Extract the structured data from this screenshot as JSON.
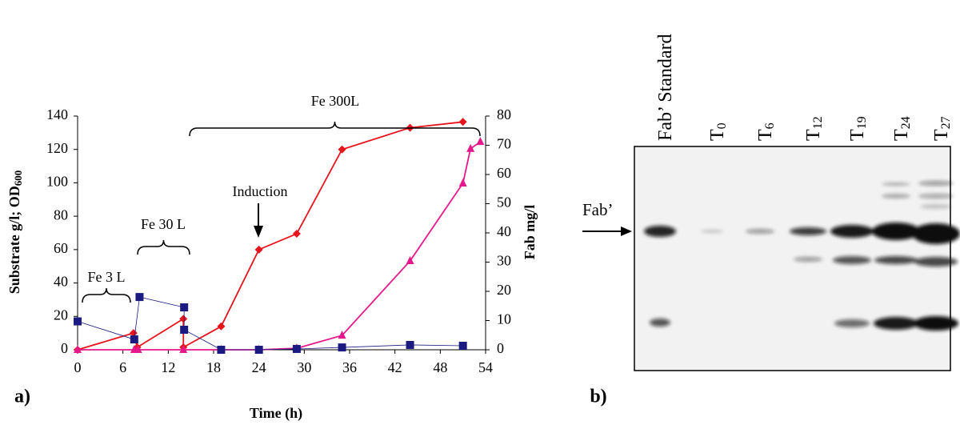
{
  "chart_data": {
    "type": "line",
    "panel_label": "a)",
    "xlabel": "Time (h)",
    "ylabel": {
      "text": "Substrate g/l; OD",
      "subscript": "600"
    },
    "y2label": "Fab mg/l",
    "xlim": [
      0,
      54
    ],
    "xticks": [
      0,
      6,
      12,
      18,
      24,
      30,
      36,
      42,
      48,
      54
    ],
    "ylim": [
      0,
      140
    ],
    "yticks": [
      0,
      20,
      40,
      60,
      80,
      100,
      120,
      140
    ],
    "y2lim": [
      0,
      80
    ],
    "y2ticks": [
      0,
      10,
      20,
      30,
      40,
      50,
      60,
      70,
      80
    ],
    "series": [
      {
        "color": "#e8141c",
        "marker": "diamond",
        "x": [
          0,
          7.4,
          7.9,
          14,
          14,
          19,
          24,
          29,
          35,
          44,
          51
        ],
        "values": [
          0,
          10,
          1.5,
          18.5,
          1.5,
          14,
          60,
          69.5,
          120,
          133,
          136.5
        ]
      },
      {
        "color": "#e6198c",
        "marker": "triangle",
        "axis": "y2",
        "x": [
          0,
          7.5,
          8,
          14,
          19,
          24,
          29,
          35,
          44,
          51,
          52,
          53.3
        ],
        "values": [
          0,
          0,
          0,
          0,
          0,
          0,
          0.5,
          4.9,
          30.4,
          57,
          68.8,
          71.2
        ]
      },
      {
        "color": "#1a1a80",
        "marker": "square",
        "x": [
          0,
          7.5,
          8.2,
          14.1,
          14.1,
          19,
          24,
          29,
          35,
          44,
          51
        ],
        "values": [
          17,
          6.2,
          31.6,
          25.4,
          12,
          0,
          0,
          0.5,
          1.4,
          2.9,
          2.4
        ]
      }
    ],
    "annotations": [
      "Fe 3 L",
      "Fe 30 L",
      "Fe 300L",
      "Induction"
    ]
  },
  "gel": {
    "panel_label": "b)",
    "marker_label": "Fab’",
    "lanes": [
      {
        "text": "Fab’ Standard"
      },
      {
        "text": "T",
        "sub": "0"
      },
      {
        "text": "T",
        "sub": "6"
      },
      {
        "text": "T",
        "sub": "12"
      },
      {
        "text": "T",
        "sub": "19"
      },
      {
        "text": "T",
        "sub": "24"
      },
      {
        "text": "T",
        "sub": "27"
      }
    ]
  }
}
